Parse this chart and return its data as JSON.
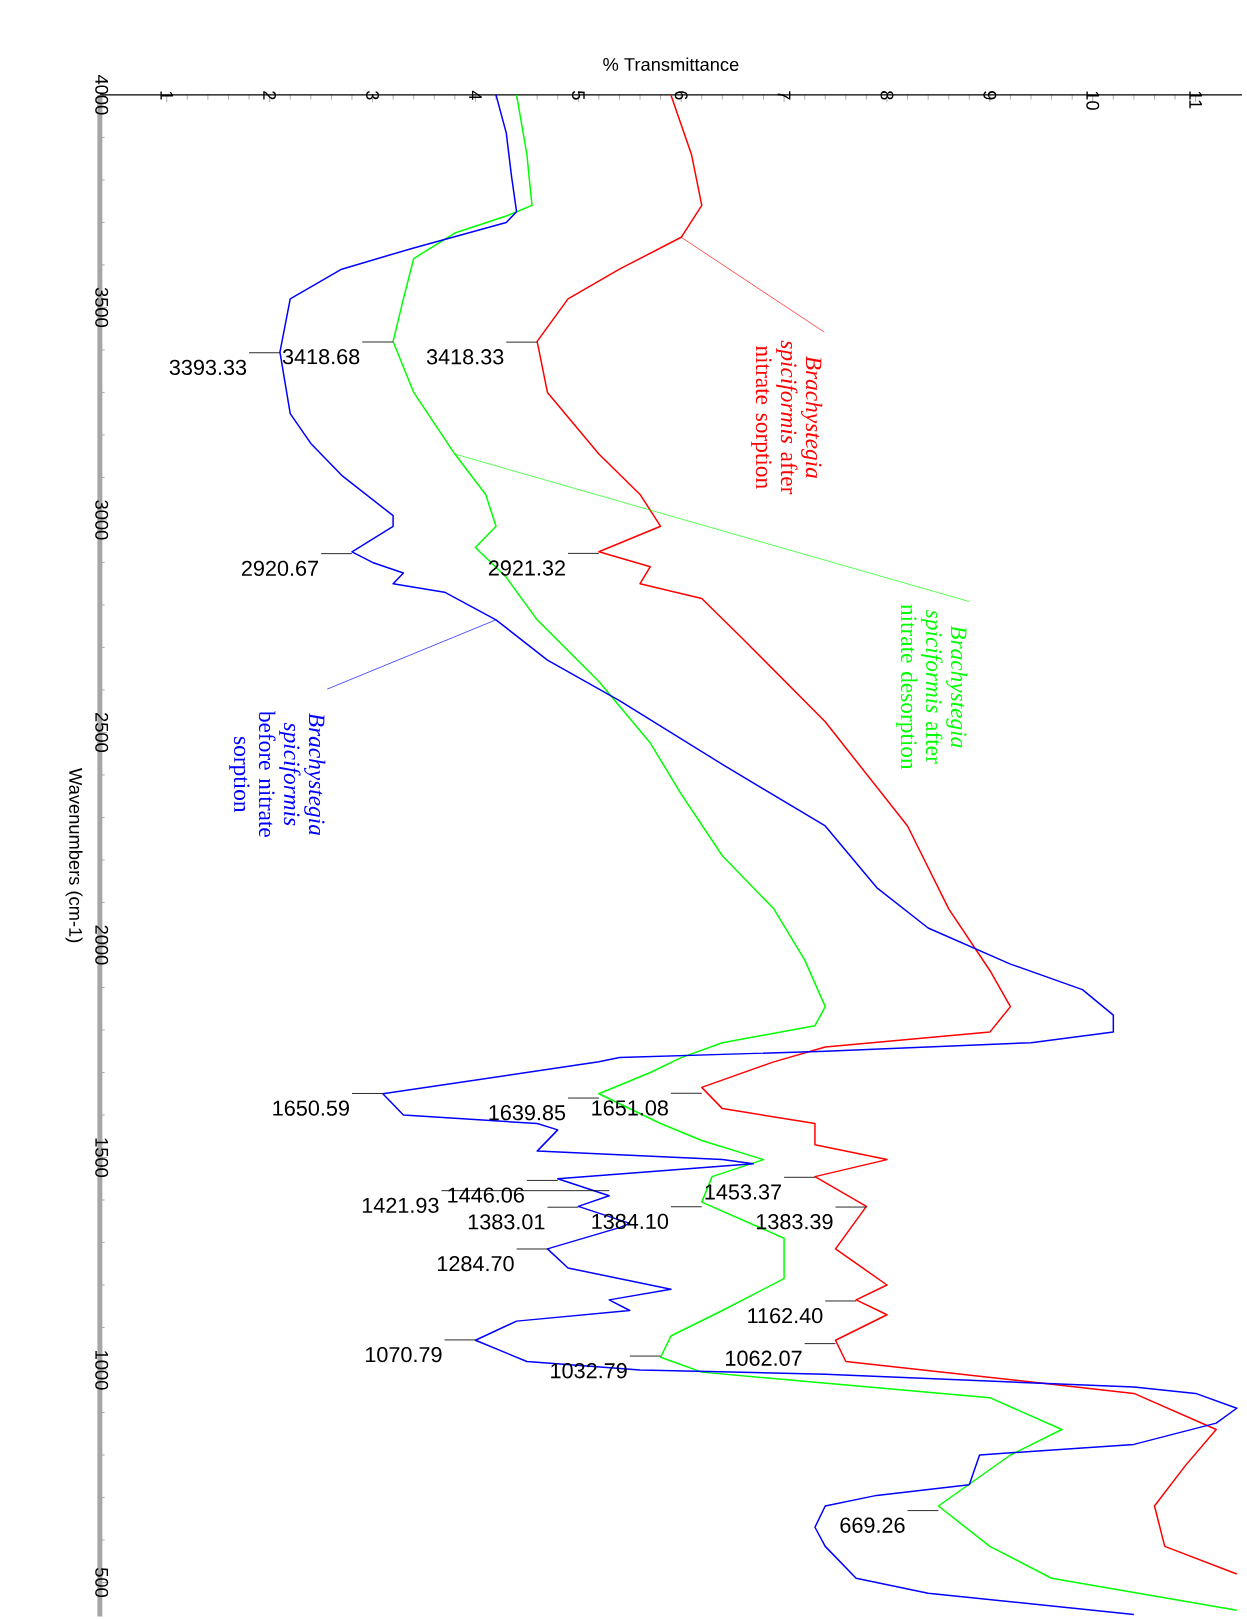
{
  "chart_data": {
    "type": "line",
    "xlabel": "% Transmittance",
    "ylabel": "Wavenumbers (cm-1)",
    "xlim": [
      0.35,
      11.45
    ],
    "ylim": [
      420,
      4000
    ],
    "xticks": [
      1,
      2,
      3,
      4,
      5,
      6,
      7,
      8,
      9,
      10,
      11
    ],
    "yticks": [
      4000,
      3500,
      3000,
      2500,
      2000,
      1500,
      1000,
      500
    ],
    "legend": false,
    "series": [
      {
        "name": "*Brachystegia spiciformis* after nitrate sorption",
        "color": "#ff0000",
        "values": [
          4000,
          3860,
          3740,
          3665,
          3590,
          3520,
          3420,
          3300,
          3155,
          3060,
          2985,
          2925,
          2890,
          2850,
          2815,
          2720,
          2525,
          2280,
          2085,
          1940,
          1855,
          1795,
          1760,
          1725,
          1665,
          1615,
          1580,
          1530,
          1495,
          1455,
          1385,
          1285,
          1200,
          1165,
          1130,
          1070,
          1020,
          945,
          860,
          775,
          680,
          585,
          520
        ],
        "x": [
          5.9,
          6.1,
          6.2,
          6.0,
          5.4,
          4.9,
          4.6,
          4.7,
          5.2,
          5.6,
          5.8,
          5.2,
          5.7,
          5.6,
          6.2,
          6.6,
          7.4,
          8.2,
          8.6,
          9.0,
          9.2,
          9.0,
          7.4,
          6.9,
          6.2,
          6.4,
          7.3,
          7.3,
          8.0,
          7.3,
          7.8,
          7.5,
          8.0,
          7.7,
          8.0,
          7.5,
          7.6,
          10.4,
          11.2,
          10.9,
          10.6,
          10.7,
          11.4
        ]
      },
      {
        "name": "*Brachystegia spiciformis* after nitrate desorption",
        "color": "#00ff00",
        "values": [
          4000,
          3860,
          3740,
          3715,
          3675,
          3615,
          3520,
          3420,
          3300,
          3155,
          3060,
          2985,
          2935,
          2865,
          2765,
          2620,
          2475,
          2355,
          2210,
          2085,
          1965,
          1855,
          1810,
          1770,
          1735,
          1700,
          1650,
          1580,
          1540,
          1495,
          1455,
          1395,
          1310,
          1215,
          1140,
          1080,
          1030,
          995,
          935,
          860,
          800,
          680,
          585,
          510,
          435
        ],
        "x": [
          4.4,
          4.5,
          4.55,
          4.3,
          3.8,
          3.4,
          3.3,
          3.2,
          3.4,
          3.8,
          4.1,
          4.2,
          4.0,
          4.3,
          4.6,
          5.2,
          5.7,
          6.0,
          6.4,
          6.9,
          7.2,
          7.4,
          7.3,
          6.4,
          6.0,
          5.7,
          5.2,
          5.8,
          6.2,
          6.8,
          6.3,
          6.2,
          7.0,
          7.0,
          6.4,
          5.9,
          5.8,
          6.2,
          9.0,
          9.7,
          9.2,
          8.5,
          9.0,
          9.6,
          11.4
        ]
      },
      {
        "name": "*Brachystegia spiciformis* before nitrate sorption",
        "color": "#0000ff",
        "values": [
          4000,
          3910,
          3810,
          3725,
          3700,
          3640,
          3590,
          3520,
          3395,
          3250,
          3180,
          3105,
          3010,
          2985,
          2925,
          2900,
          2875,
          2850,
          2830,
          2765,
          2670,
          2575,
          2425,
          2280,
          2135,
          2040,
          1955,
          1895,
          1835,
          1795,
          1770,
          1750,
          1735,
          1725,
          1650,
          1600,
          1580,
          1565,
          1515,
          1495,
          1485,
          1450,
          1410,
          1385,
          1345,
          1335,
          1285,
          1240,
          1190,
          1165,
          1140,
          1115,
          1070,
          1020,
          1000,
          990,
          960,
          945,
          910,
          875,
          825,
          800,
          730,
          705,
          680,
          630,
          585,
          510,
          475,
          425
        ],
        "x": [
          4.2,
          4.3,
          4.35,
          4.4,
          4.3,
          3.4,
          2.7,
          2.2,
          2.1,
          2.2,
          2.4,
          2.7,
          3.2,
          3.2,
          2.8,
          3.0,
          3.3,
          3.2,
          3.7,
          4.2,
          4.7,
          5.4,
          6.4,
          7.4,
          7.9,
          8.4,
          9.2,
          9.9,
          10.2,
          10.2,
          9.4,
          7.4,
          5.4,
          5.2,
          3.1,
          3.3,
          4.6,
          4.8,
          4.6,
          6.4,
          6.7,
          4.8,
          5.3,
          5.0,
          5.5,
          5.4,
          4.7,
          4.9,
          5.9,
          5.3,
          5.5,
          4.4,
          4.0,
          4.5,
          5.6,
          7.4,
          10.4,
          11.0,
          11.4,
          11.2,
          10.4,
          8.9,
          8.8,
          7.9,
          7.4,
          7.3,
          7.4,
          7.7,
          8.4,
          10.4
        ]
      }
    ],
    "annotations": [
      {
        "text": "3393.33",
        "y": 3393.33,
        "x": 2.1
      },
      {
        "text": "3418.68",
        "y": 3418.68,
        "x": 3.2
      },
      {
        "text": "3418.33",
        "y": 3418.33,
        "x": 4.6
      },
      {
        "text": "2920.67",
        "y": 2920.67,
        "x": 2.8
      },
      {
        "text": "2921.32",
        "y": 2921.32,
        "x": 5.2
      },
      {
        "text": "1650.59",
        "y": 1650.59,
        "x": 3.1
      },
      {
        "text": "1651.08",
        "y": 1651.08,
        "x": 6.2
      },
      {
        "text": "1639.85",
        "y": 1639.85,
        "x": 5.2
      },
      {
        "text": "1453.37",
        "y": 1453.37,
        "x": 7.3
      },
      {
        "text": "1446.06",
        "y": 1446.06,
        "x": 4.8
      },
      {
        "text": "1421.93",
        "y": 1421.93,
        "x": 5.3
      },
      {
        "text": "1384.10",
        "y": 1384.1,
        "x": 6.2
      },
      {
        "text": "1383.01",
        "y": 1383.01,
        "x": 5.0
      },
      {
        "text": "1383.39",
        "y": 1383.39,
        "x": 7.8
      },
      {
        "text": "1284.70",
        "y": 1284.7,
        "x": 4.7
      },
      {
        "text": "1162.40",
        "y": 1162.4,
        "x": 7.7
      },
      {
        "text": "1070.79",
        "y": 1070.79,
        "x": 4.0
      },
      {
        "text": "1062.07",
        "y": 1062.07,
        "x": 7.5
      },
      {
        "text": "1032.79",
        "y": 1032.79,
        "x": 5.8
      },
      {
        "text": "669.26",
        "y": 669.26,
        "x": 8.5
      }
    ]
  }
}
